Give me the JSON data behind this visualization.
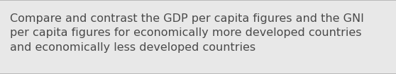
{
  "text": "Compare and contrast the GDP per capita figures and the GNI\nper capita figures for economically more developed countries\nand economically less developed countries",
  "background_color": "#e8e8e8",
  "text_color": "#4a4a4a",
  "border_color": "#b0b0b0",
  "font_size": 11.5,
  "fig_width": 5.58,
  "fig_height": 1.05
}
